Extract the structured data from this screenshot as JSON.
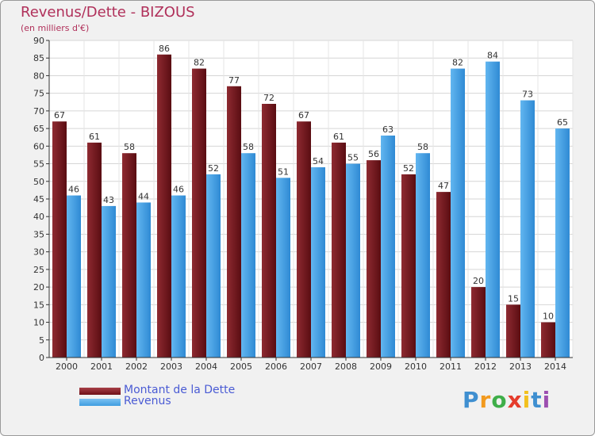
{
  "header": {
    "title": "Revenus/Dette - BIZOUS",
    "subtitle": "(en milliers d'€)"
  },
  "legend": {
    "items": [
      {
        "label": "Montant de la Dette",
        "color": "#6e0f16"
      },
      {
        "label": "Revenus",
        "color": "#3f9de0"
      }
    ]
  },
  "logo": {
    "letters": [
      "P",
      "r",
      "o",
      "x",
      "i",
      "t",
      "i"
    ],
    "colors": [
      "#3f8fd0",
      "#f29a1e",
      "#3fae49",
      "#e53c2c",
      "#f2c01e",
      "#3f8fd0",
      "#9c4fb0"
    ]
  },
  "chart_data": {
    "type": "bar",
    "categories": [
      "2000",
      "2001",
      "2002",
      "2003",
      "2004",
      "2005",
      "2006",
      "2007",
      "2008",
      "2009",
      "2010",
      "2011",
      "2012",
      "2013",
      "2014"
    ],
    "series": [
      {
        "name": "Montant de la Dette",
        "color": "#7a1a22",
        "values": [
          67,
          61,
          58,
          86,
          82,
          77,
          72,
          67,
          61,
          56,
          52,
          47,
          20,
          15,
          10
        ]
      },
      {
        "name": "Revenus",
        "color": "#3f9de0",
        "values": [
          46,
          43,
          44,
          46,
          52,
          58,
          51,
          54,
          55,
          63,
          58,
          82,
          84,
          73,
          65
        ]
      }
    ],
    "ylim": [
      0,
      90
    ],
    "ytick_step": 5,
    "grid": true
  }
}
